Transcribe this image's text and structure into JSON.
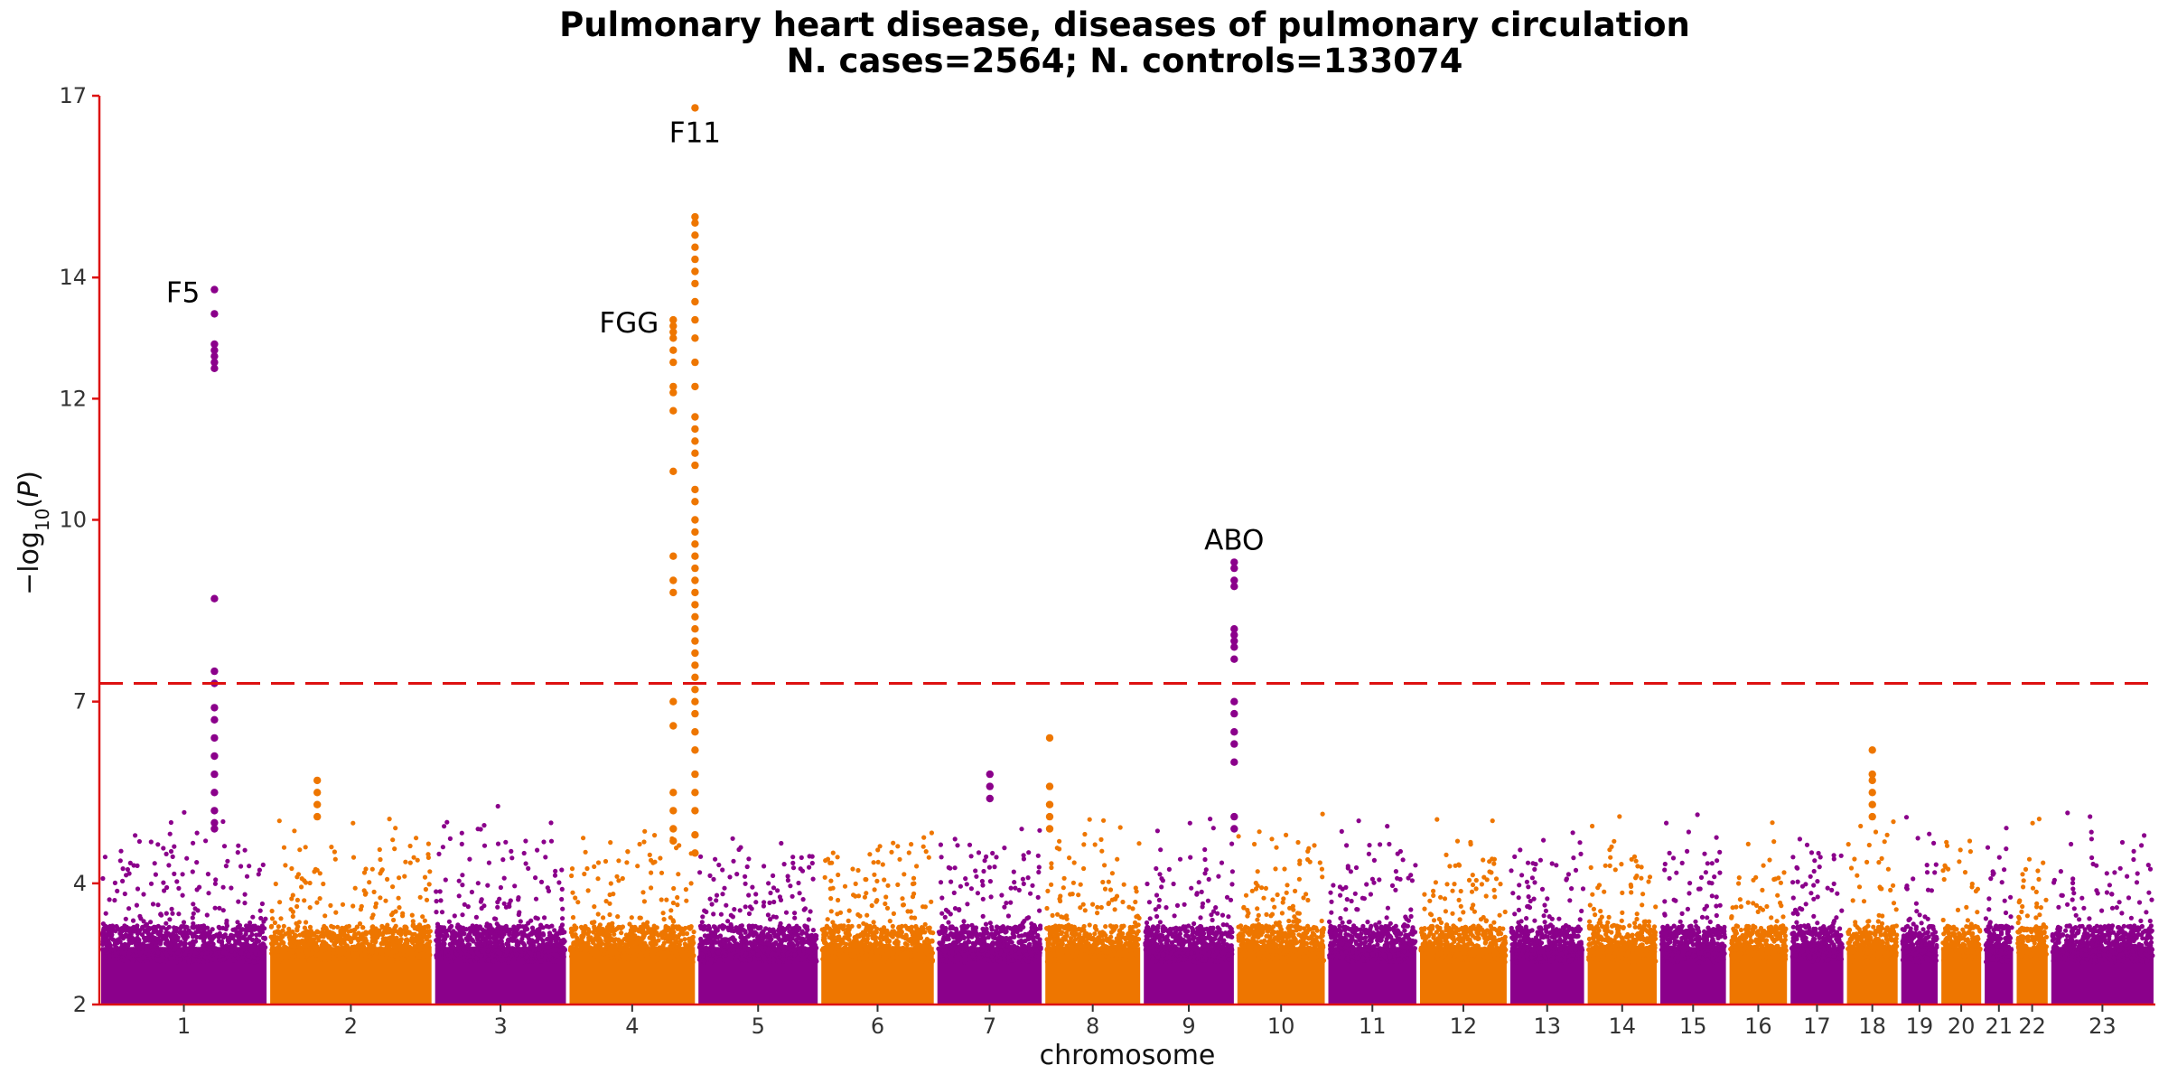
{
  "chart_data": {
    "type": "scatter",
    "title": "Pulmonary heart disease, diseases of pulmonary circulation",
    "subtitle": "N. cases=2564; N. controls=133074",
    "xlabel": "chromosome",
    "ylabel": "−log10(P)",
    "ylim": [
      2,
      17
    ],
    "y_ticks": [
      2,
      4,
      7,
      10,
      12,
      14,
      17
    ],
    "significance_threshold": 7.3,
    "colors": {
      "odd": "#8b008b",
      "even": "#ee7600",
      "axis": "#dd1111",
      "threshold": "#dd1111"
    },
    "chromosomes": [
      {
        "label": "1",
        "start": 0,
        "end": 249
      },
      {
        "label": "2",
        "start": 249,
        "end": 492
      },
      {
        "label": "3",
        "start": 492,
        "end": 690
      },
      {
        "label": "4",
        "start": 690,
        "end": 880
      },
      {
        "label": "5",
        "start": 880,
        "end": 1061
      },
      {
        "label": "6",
        "start": 1061,
        "end": 1232
      },
      {
        "label": "7",
        "start": 1232,
        "end": 1391
      },
      {
        "label": "8",
        "start": 1391,
        "end": 1536
      },
      {
        "label": "9",
        "start": 1536,
        "end": 1674
      },
      {
        "label": "10",
        "start": 1674,
        "end": 1808
      },
      {
        "label": "11",
        "start": 1808,
        "end": 1943
      },
      {
        "label": "12",
        "start": 1943,
        "end": 2076
      },
      {
        "label": "13",
        "start": 2076,
        "end": 2190
      },
      {
        "label": "14",
        "start": 2190,
        "end": 2297
      },
      {
        "label": "15",
        "start": 2297,
        "end": 2399
      },
      {
        "label": "16",
        "start": 2399,
        "end": 2489
      },
      {
        "label": "17",
        "start": 2489,
        "end": 2572
      },
      {
        "label": "18",
        "start": 2572,
        "end": 2652
      },
      {
        "label": "19",
        "start": 2652,
        "end": 2711
      },
      {
        "label": "20",
        "start": 2711,
        "end": 2775
      },
      {
        "label": "21",
        "start": 2775,
        "end": 2822
      },
      {
        "label": "22",
        "start": 2822,
        "end": 2873
      },
      {
        "label": "23",
        "start": 2873,
        "end": 3029
      }
    ],
    "peaks": [
      {
        "chr": "1",
        "pos": 169.5,
        "values": [
          13.8,
          13.4,
          12.9,
          12.8,
          12.7,
          12.6,
          12.5,
          8.7,
          7.5,
          7.3,
          6.9,
          6.7,
          6.4,
          6.1,
          5.8,
          5.5,
          5.2,
          5.0,
          4.9
        ]
      },
      {
        "chr": "4",
        "pos": 155.5,
        "values": [
          13.3,
          13.2,
          13.1,
          13.0,
          12.8,
          12.6,
          12.2,
          12.1,
          11.8,
          10.8,
          9.4,
          9.0,
          8.8,
          7.0,
          6.6,
          5.5,
          5.2,
          4.9,
          4.7
        ]
      },
      {
        "chr": "4",
        "pos": 187.5,
        "values": [
          16.8,
          15.0,
          14.9,
          14.7,
          14.5,
          14.3,
          14.1,
          13.9,
          13.6,
          13.3,
          13.0,
          12.6,
          12.2,
          11.7,
          11.5,
          11.3,
          11.1,
          10.9,
          10.5,
          10.3,
          10.0,
          9.8,
          9.6,
          9.4,
          9.2,
          9.0,
          8.8,
          8.6,
          8.4,
          8.2,
          8.0,
          7.8,
          7.6,
          7.4,
          7.2,
          7.0,
          6.8,
          6.5,
          6.2,
          5.8,
          5.5,
          5.2,
          4.8,
          4.5
        ]
      },
      {
        "chr": "9",
        "pos": 136.0,
        "values": [
          9.3,
          9.2,
          9.0,
          8.9,
          8.2,
          8.1,
          8.0,
          7.9,
          7.7,
          7.0,
          6.8,
          6.5,
          6.3,
          6.0,
          5.1,
          4.9
        ]
      },
      {
        "chr": "8",
        "pos": 9.0,
        "values": [
          6.4,
          5.6,
          5.3,
          5.1,
          4.9
        ]
      },
      {
        "chr": "18",
        "pos": 40.0,
        "values": [
          6.2,
          5.8,
          5.7,
          5.5,
          5.3,
          5.1
        ]
      },
      {
        "chr": "2",
        "pos": 72.0,
        "values": [
          5.7,
          5.5,
          5.3,
          5.1
        ]
      },
      {
        "chr": "7",
        "pos": 80.0,
        "values": [
          5.8,
          5.6,
          5.4
        ]
      }
    ],
    "annotations": [
      {
        "label": "F5",
        "chr": "1",
        "pos": 169.5,
        "y": 13.8,
        "anchor": "end"
      },
      {
        "label": "FGG",
        "chr": "4",
        "pos": 155.5,
        "y": 13.3,
        "anchor": "end"
      },
      {
        "label": "F11",
        "chr": "4",
        "pos": 187.5,
        "y": 16.8,
        "anchor": "middle"
      },
      {
        "label": "ABO",
        "chr": "9",
        "pos": 136.0,
        "y": 9.3,
        "anchor": "middle"
      }
    ]
  }
}
